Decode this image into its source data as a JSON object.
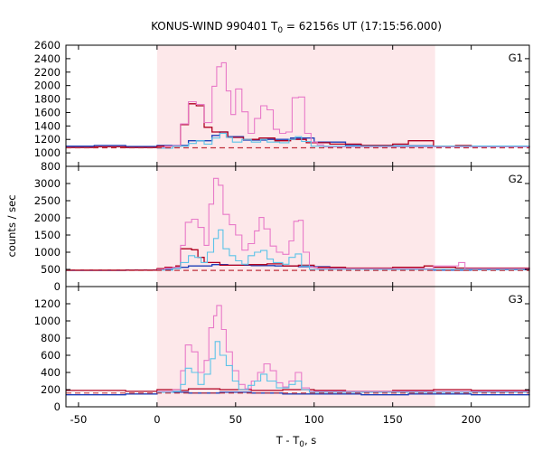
{
  "chart_data": {
    "type": "line",
    "title_main": "KONUS-WIND 990401 T",
    "title_sub": "0",
    "title_rest": " = 62156s UT (17:15:56.000)",
    "xlabel_main": "T - T",
    "xlabel_sub": "0",
    "xlabel_rest": ", s",
    "ylabel": "counts / sec",
    "xlim": [
      -58,
      237
    ],
    "x_ticks": [
      -50,
      0,
      50,
      100,
      150,
      200
    ],
    "highlight_interval": [
      0,
      177
    ],
    "colors": {
      "highlight": "#fde8ea",
      "sum_hist": "#e879c8",
      "sub_hist": "#5cc3e8",
      "red_hist": "#b00020",
      "blue_hist": "#1e3fb8",
      "background_line": "#c0303c"
    },
    "panels": [
      {
        "label": "G1",
        "ylim": [
          800,
          2600
        ],
        "y_ticks": [
          800,
          1000,
          1200,
          1400,
          1600,
          1800,
          2000,
          2200,
          2400,
          2600
        ],
        "background_level": 1075,
        "series": {
          "sum_hist": [
            [
              0,
              1080
            ],
            [
              5,
              1100
            ],
            [
              10,
              1110
            ],
            [
              15,
              1430
            ],
            [
              20,
              1760
            ],
            [
              25,
              1720
            ],
            [
              30,
              1450
            ],
            [
              35,
              1990
            ],
            [
              38,
              2280
            ],
            [
              41,
              2340
            ],
            [
              44,
              1920
            ],
            [
              47,
              1570
            ],
            [
              50,
              1950
            ],
            [
              54,
              1610
            ],
            [
              58,
              1290
            ],
            [
              62,
              1510
            ],
            [
              66,
              1700
            ],
            [
              70,
              1640
            ],
            [
              74,
              1350
            ],
            [
              78,
              1290
            ],
            [
              82,
              1310
            ],
            [
              86,
              1820
            ],
            [
              90,
              1830
            ],
            [
              94,
              1290
            ],
            [
              98,
              1160
            ],
            [
              102,
              1120
            ],
            [
              106,
              1090
            ]
          ],
          "sub_hist": [
            [
              0,
              1070
            ],
            [
              10,
              1100
            ],
            [
              20,
              1140
            ],
            [
              25,
              1180
            ],
            [
              30,
              1130
            ],
            [
              35,
              1220
            ],
            [
              40,
              1290
            ],
            [
              44,
              1230
            ],
            [
              48,
              1160
            ],
            [
              54,
              1200
            ],
            [
              60,
              1160
            ],
            [
              66,
              1200
            ],
            [
              70,
              1160
            ],
            [
              78,
              1150
            ],
            [
              84,
              1200
            ],
            [
              88,
              1240
            ],
            [
              92,
              1170
            ],
            [
              98,
              1100
            ]
          ],
          "red_hist": [
            [
              -58,
              1080
            ],
            [
              -40,
              1090
            ],
            [
              -20,
              1080
            ],
            [
              0,
              1100
            ],
            [
              15,
              1420
            ],
            [
              20,
              1730
            ],
            [
              25,
              1700
            ],
            [
              30,
              1380
            ],
            [
              35,
              1310
            ],
            [
              45,
              1230
            ],
            [
              55,
              1200
            ],
            [
              65,
              1220
            ],
            [
              75,
              1180
            ],
            [
              85,
              1200
            ],
            [
              95,
              1150
            ],
            [
              110,
              1130
            ],
            [
              130,
              1110
            ],
            [
              150,
              1130
            ],
            [
              160,
              1180
            ],
            [
              176,
              1100
            ],
            [
              190,
              1110
            ],
            [
              200,
              1090
            ],
            [
              237,
              1080
            ]
          ],
          "blue_hist": [
            [
              -58,
              1100
            ],
            [
              -40,
              1110
            ],
            [
              -20,
              1095
            ],
            [
              0,
              1110
            ],
            [
              20,
              1180
            ],
            [
              35,
              1260
            ],
            [
              40,
              1310
            ],
            [
              45,
              1240
            ],
            [
              55,
              1190
            ],
            [
              70,
              1200
            ],
            [
              85,
              1220
            ],
            [
              100,
              1160
            ],
            [
              120,
              1110
            ],
            [
              150,
              1105
            ],
            [
              176,
              1100
            ],
            [
              200,
              1100
            ],
            [
              237,
              1105
            ]
          ]
        }
      },
      {
        "label": "G2",
        "ylim": [
          0,
          3500
        ],
        "y_ticks": [
          0,
          500,
          1000,
          1500,
          2000,
          2500,
          3000
        ],
        "background_level": 470,
        "series": {
          "sum_hist": [
            [
              0,
              500
            ],
            [
              5,
              540
            ],
            [
              10,
              560
            ],
            [
              15,
              1200
            ],
            [
              18,
              1870
            ],
            [
              22,
              1960
            ],
            [
              26,
              1720
            ],
            [
              30,
              1200
            ],
            [
              33,
              2400
            ],
            [
              36,
              3150
            ],
            [
              39,
              2950
            ],
            [
              42,
              2100
            ],
            [
              46,
              1800
            ],
            [
              50,
              1500
            ],
            [
              54,
              1060
            ],
            [
              58,
              1250
            ],
            [
              62,
              1620
            ],
            [
              65,
              2010
            ],
            [
              68,
              1680
            ],
            [
              72,
              1180
            ],
            [
              76,
              1000
            ],
            [
              80,
              940
            ],
            [
              84,
              1330
            ],
            [
              87,
              1900
            ],
            [
              90,
              1930
            ],
            [
              93,
              1000
            ],
            [
              97,
              560
            ],
            [
              102,
              520
            ],
            [
              170,
              520
            ],
            [
              176,
              600
            ],
            [
              192,
              700
            ],
            [
              196,
              520
            ],
            [
              237,
              500
            ]
          ],
          "sub_hist": [
            [
              0,
              480
            ],
            [
              10,
              520
            ],
            [
              15,
              700
            ],
            [
              20,
              900
            ],
            [
              24,
              850
            ],
            [
              28,
              700
            ],
            [
              32,
              1000
            ],
            [
              36,
              1400
            ],
            [
              39,
              1650
            ],
            [
              42,
              1100
            ],
            [
              46,
              900
            ],
            [
              50,
              750
            ],
            [
              54,
              650
            ],
            [
              58,
              900
            ],
            [
              62,
              1000
            ],
            [
              66,
              1050
            ],
            [
              70,
              800
            ],
            [
              74,
              700
            ],
            [
              80,
              650
            ],
            [
              84,
              850
            ],
            [
              88,
              950
            ],
            [
              92,
              600
            ],
            [
              97,
              500
            ],
            [
              237,
              480
            ]
          ],
          "red_hist": [
            [
              -58,
              480
            ],
            [
              0,
              520
            ],
            [
              5,
              560
            ],
            [
              12,
              600
            ],
            [
              15,
              1100
            ],
            [
              22,
              1070
            ],
            [
              26,
              850
            ],
            [
              30,
              700
            ],
            [
              40,
              620
            ],
            [
              55,
              640
            ],
            [
              70,
              660
            ],
            [
              80,
              600
            ],
            [
              90,
              620
            ],
            [
              100,
              560
            ],
            [
              120,
              540
            ],
            [
              150,
              560
            ],
            [
              170,
              600
            ],
            [
              176,
              560
            ],
            [
              190,
              540
            ],
            [
              237,
              500
            ]
          ],
          "blue_hist": [
            [
              -58,
              470
            ],
            [
              -20,
              480
            ],
            [
              0,
              500
            ],
            [
              10,
              560
            ],
            [
              20,
              600
            ],
            [
              35,
              640
            ],
            [
              45,
              620
            ],
            [
              60,
              610
            ],
            [
              75,
              600
            ],
            [
              90,
              580
            ],
            [
              110,
              520
            ],
            [
              140,
              500
            ],
            [
              176,
              480
            ],
            [
              200,
              490
            ],
            [
              237,
              480
            ]
          ]
        }
      },
      {
        "label": "G3",
        "ylim": [
          0,
          1400
        ],
        "y_ticks": [
          0,
          200,
          400,
          600,
          800,
          1000,
          1200
        ],
        "background_level": 160,
        "series": {
          "sum_hist": [
            [
              0,
              180
            ],
            [
              10,
              200
            ],
            [
              15,
              420
            ],
            [
              18,
              720
            ],
            [
              22,
              640
            ],
            [
              26,
              400
            ],
            [
              30,
              540
            ],
            [
              33,
              920
            ],
            [
              36,
              1060
            ],
            [
              38,
              1180
            ],
            [
              41,
              900
            ],
            [
              44,
              640
            ],
            [
              48,
              420
            ],
            [
              52,
              260
            ],
            [
              56,
              210
            ],
            [
              60,
              300
            ],
            [
              64,
              400
            ],
            [
              68,
              500
            ],
            [
              72,
              420
            ],
            [
              76,
              280
            ],
            [
              80,
              230
            ],
            [
              84,
              300
            ],
            [
              88,
              400
            ],
            [
              92,
              220
            ],
            [
              97,
              180
            ],
            [
              237,
              175
            ]
          ],
          "sub_hist": [
            [
              0,
              170
            ],
            [
              10,
              180
            ],
            [
              15,
              260
            ],
            [
              18,
              450
            ],
            [
              22,
              400
            ],
            [
              26,
              260
            ],
            [
              30,
              380
            ],
            [
              34,
              560
            ],
            [
              37,
              760
            ],
            [
              40,
              600
            ],
            [
              44,
              480
            ],
            [
              48,
              300
            ],
            [
              52,
              200
            ],
            [
              58,
              250
            ],
            [
              62,
              300
            ],
            [
              66,
              380
            ],
            [
              70,
              300
            ],
            [
              76,
              220
            ],
            [
              84,
              260
            ],
            [
              88,
              300
            ],
            [
              92,
              200
            ],
            [
              97,
              170
            ],
            [
              237,
              165
            ]
          ],
          "red_hist": [
            [
              -58,
              190
            ],
            [
              -20,
              180
            ],
            [
              0,
              200
            ],
            [
              15,
              190
            ],
            [
              20,
              210
            ],
            [
              40,
              200
            ],
            [
              60,
              190
            ],
            [
              80,
              200
            ],
            [
              100,
              190
            ],
            [
              120,
              180
            ],
            [
              150,
              190
            ],
            [
              176,
              200
            ],
            [
              200,
              190
            ],
            [
              237,
              180
            ]
          ],
          "blue_hist": [
            [
              -58,
              140
            ],
            [
              -20,
              150
            ],
            [
              0,
              170
            ],
            [
              20,
              160
            ],
            [
              40,
              170
            ],
            [
              60,
              160
            ],
            [
              80,
              150
            ],
            [
              100,
              150
            ],
            [
              130,
              140
            ],
            [
              160,
              150
            ],
            [
              176,
              150
            ],
            [
              200,
              140
            ],
            [
              237,
              135
            ]
          ]
        }
      }
    ]
  }
}
